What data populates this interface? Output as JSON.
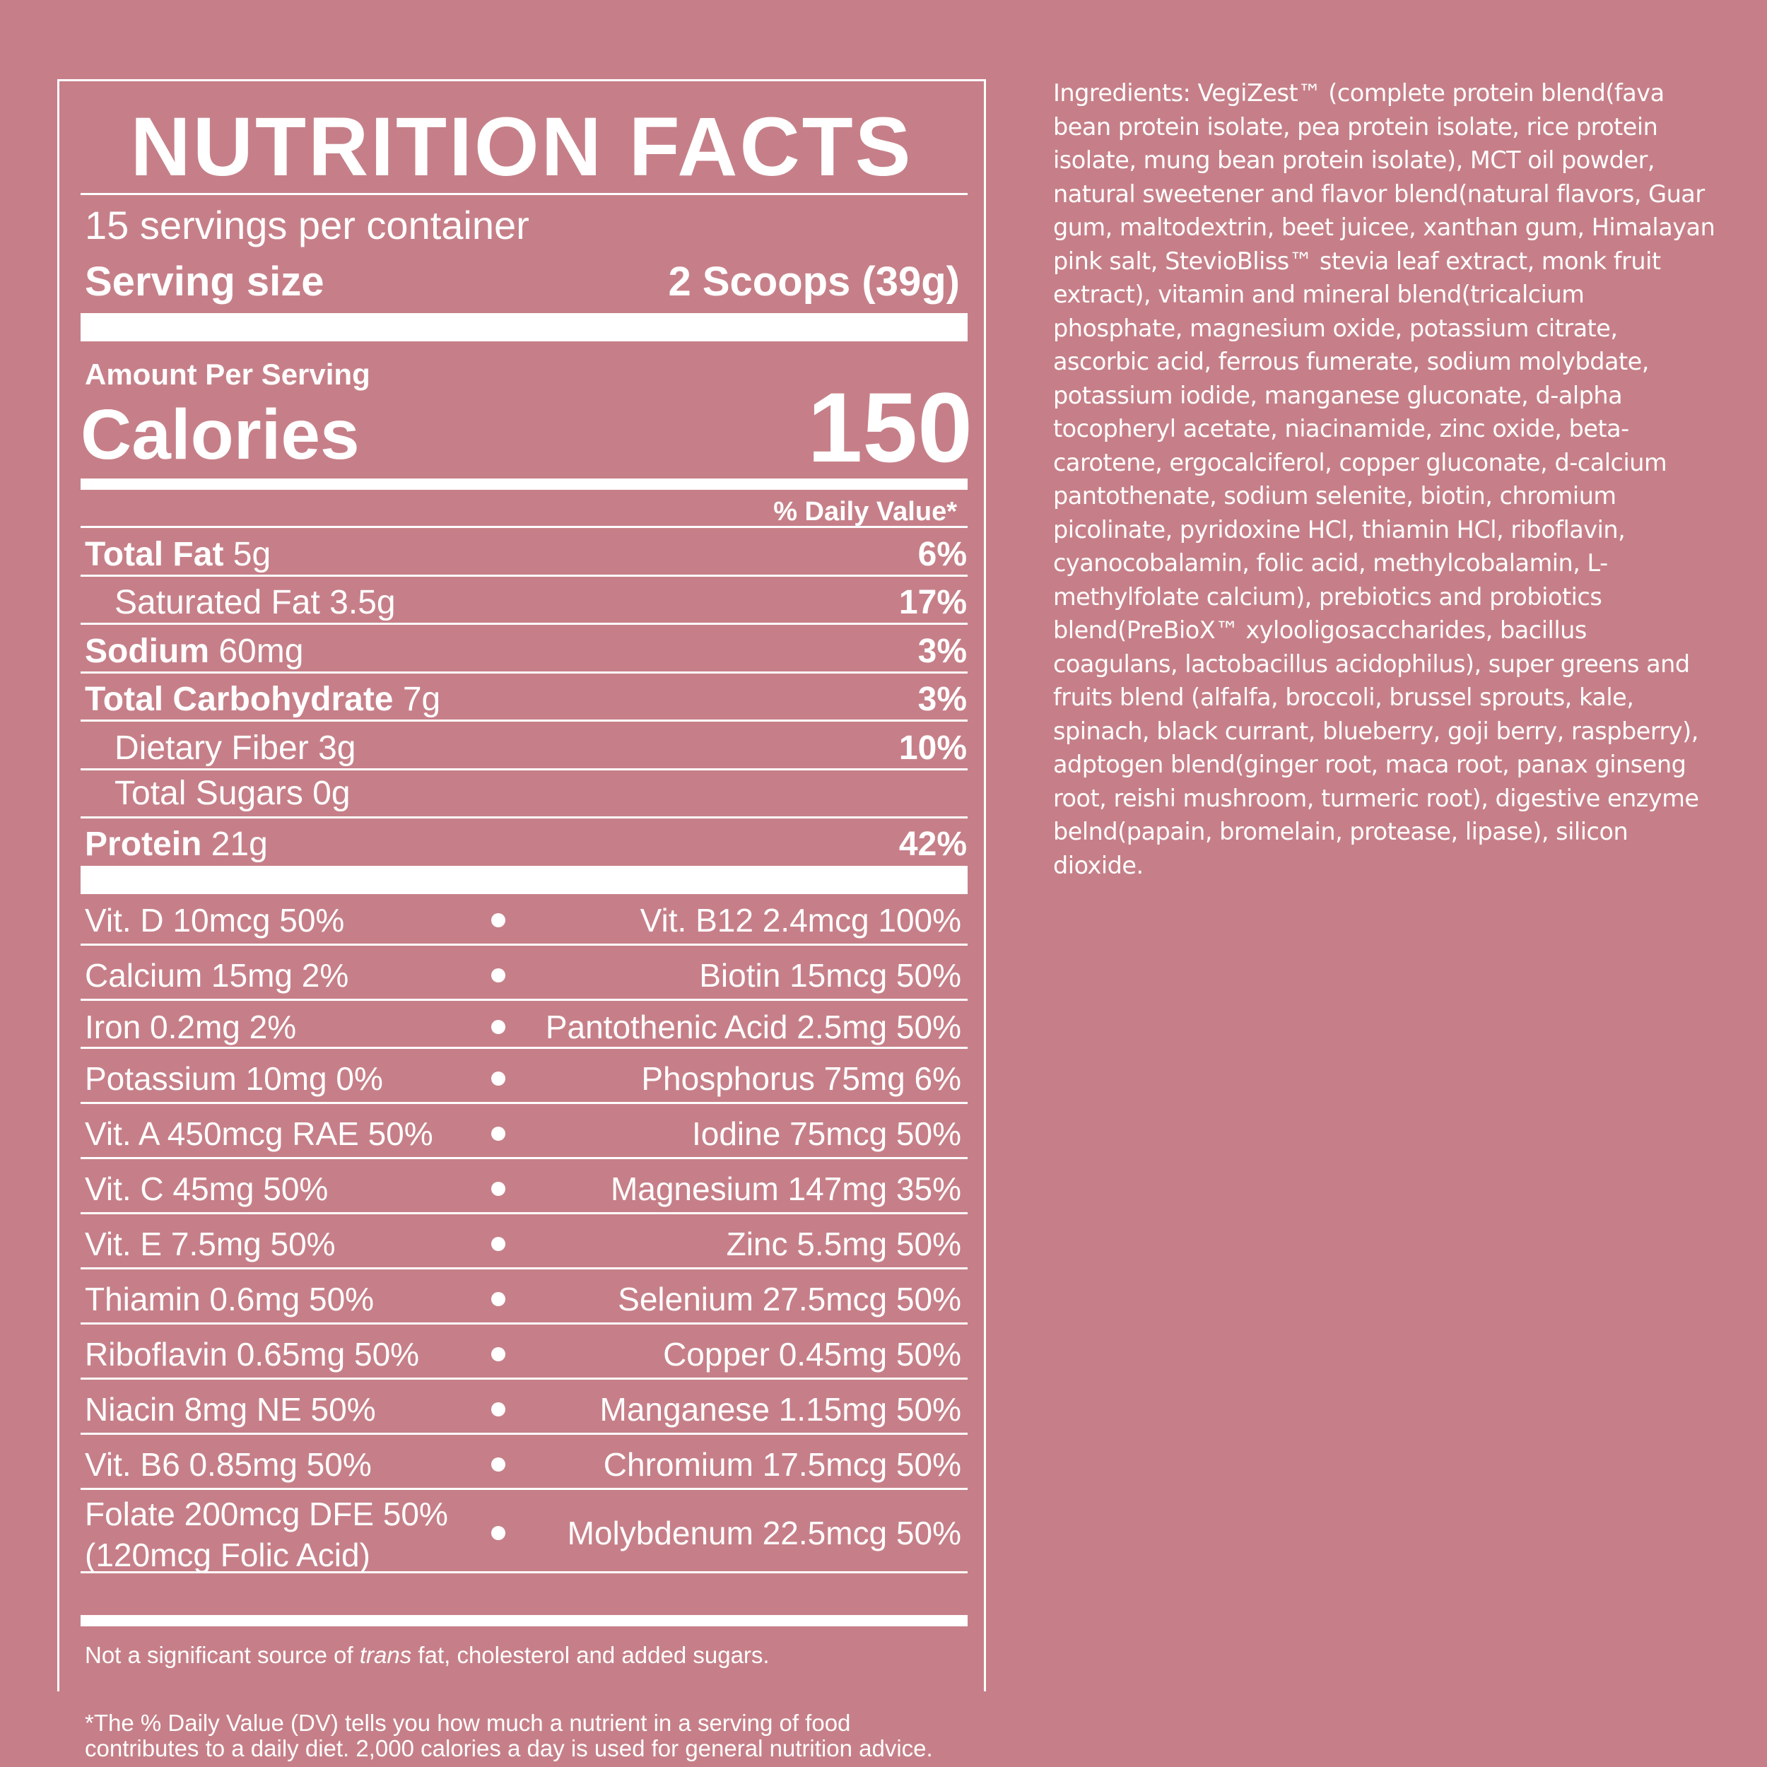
{
  "label": {
    "title": "NUTRITION FACTS",
    "servings_per_container": "15 servings per container",
    "serving_size_label": "Serving size",
    "serving_size_value": "2 Scoops (39g)",
    "amount_per_serving": "Amount Per Serving",
    "calories_label": "Calories",
    "calories_value": "150",
    "daily_value_header": "% Daily Value*",
    "nutrients": [
      {
        "name": "Total Fat",
        "amount": "5g",
        "dv": "6%"
      },
      {
        "name": "Saturated Fat 3.5g",
        "amount": "",
        "dv": "17%"
      },
      {
        "name": "Sodium",
        "amount": "60mg",
        "dv": "3%"
      },
      {
        "name": "Total Carbohydrate",
        "amount": "7g",
        "dv": "3%"
      },
      {
        "name": "Dietary Fiber 3g",
        "amount": "",
        "dv": "10%"
      },
      {
        "name": "Total Sugars 0g",
        "amount": "",
        "dv": ""
      },
      {
        "name": "Protein",
        "amount": "21g",
        "dv": "42%"
      }
    ],
    "vitamins": [
      {
        "left": "Vit. D 10mcg 50%",
        "right": "Vit. B12 2.4mcg 100%"
      },
      {
        "left": "Calcium 15mg 2%",
        "right": "Biotin 15mcg 50%"
      },
      {
        "left": "Iron 0.2mg 2%",
        "right": "Pantothenic Acid 2.5mg 50%"
      },
      {
        "left": "Potassium 10mg 0%",
        "right": "Phosphorus 75mg 6%"
      },
      {
        "left": "Vit. A 450mcg RAE 50%",
        "right": "Iodine 75mcg 50%"
      },
      {
        "left": "Vit. C 45mg 50%",
        "right": "Magnesium 147mg 35%"
      },
      {
        "left": "Vit. E 7.5mg 50%",
        "right": "Zinc 5.5mg 50%"
      },
      {
        "left": "Thiamin 0.6mg 50%",
        "right": "Selenium 27.5mcg 50%"
      },
      {
        "left": "Riboflavin 0.65mg 50%",
        "right": "Copper 0.45mg 50%"
      },
      {
        "left": "Niacin 8mg NE 50%",
        "right": "Manganese 1.15mg 50%"
      },
      {
        "left": "Vit. B6 0.85mg 50%",
        "right": "Chromium 17.5mcg 50%"
      },
      {
        "left": "Folate 200mcg DFE 50%",
        "left_line2": "(120mcg Folic Acid)",
        "right": "Molybdenum 22.5mcg 50%"
      }
    ],
    "note_before": "Not a significant source of ",
    "note_italic": "trans",
    "note_after": " fat, cholesterol and added sugars.",
    "footnote": "*The % Daily Value (DV) tells you how much a nutrient in a serving of food contributes to a daily diet. 2,000 calories a day is used for general nutrition advice."
  },
  "ingredients": "Ingredients: VegiZest™ (complete protein blend(fava bean protein isolate, pea protein isolate, rice protein isolate, mung bean protein isolate), MCT oil powder, natural sweetener and flavor blend(natural flavors, Guar gum, maltodextrin, beet juicee, xanthan gum, Himalayan pink salt, StevioBliss™ stevia leaf extract, monk fruit extract), vitamin and mineral blend(tricalcium phosphate, magnesium oxide, potassium citrate, ascorbic acid, ferrous fumerate, sodium molybdate, potassium iodide, manganese gluconate, d-alpha tocopheryl acetate, niacinamide, zinc oxide, beta-carotene, ergocalciferol, copper gluconate, d-calcium pantothenate, sodium selenite, biotin, chromium picolinate, pyridoxine HCl, thiamin HCl, riboflavin, cyanocobalamin, folic acid, methylcobalamin, L-methylfolate calcium), prebiotics and probiotics blend(PreBioX™ xylooligosaccharides, bacillus coagulans, lactobacillus acidophilus), super greens and fruits blend (alfalfa, broccoli, brussel sprouts, kale, spinach, black currant, blueberry, goji berry, raspberry), adptogen blend(ginger root, maca root, panax ginseng root, reishi mushroom, turmeric root), digestive enzyme belnd(papain, bromelain, protease, lipase), silicon dioxide.",
  "colors": {
    "background": "#c67f88",
    "text": "#ffffff"
  }
}
